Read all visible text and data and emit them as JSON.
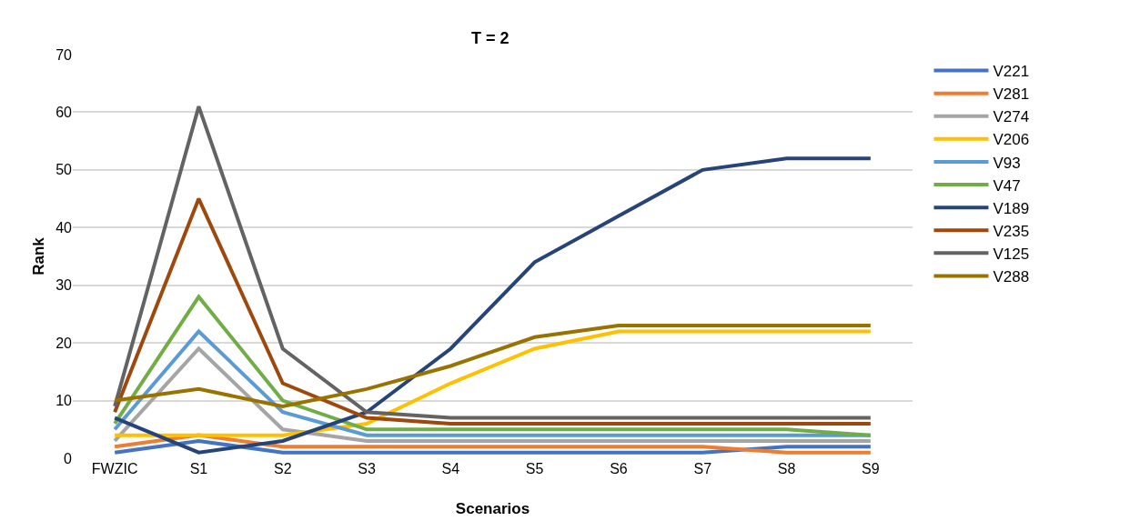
{
  "chart_data": {
    "type": "line",
    "title": "T = 2",
    "xlabel": "Scenarios",
    "ylabel": "Rank",
    "categories": [
      "FWZIC",
      "S1",
      "S2",
      "S3",
      "S4",
      "S5",
      "S6",
      "S7",
      "S8",
      "S9"
    ],
    "ylim": [
      0,
      70
    ],
    "yticks": [
      0,
      10,
      20,
      30,
      40,
      50,
      60,
      70
    ],
    "grid": "y",
    "legend": "right",
    "marker": "none",
    "line_style": "solid",
    "series": [
      {
        "name": "V221",
        "color": "#4472c4",
        "values": [
          1,
          3,
          1,
          1,
          1,
          1,
          1,
          1,
          2,
          2
        ]
      },
      {
        "name": "V281",
        "color": "#ed7d31",
        "values": [
          2,
          4,
          2,
          2,
          2,
          2,
          2,
          2,
          1,
          1
        ]
      },
      {
        "name": "V274",
        "color": "#a5a5a5",
        "values": [
          3,
          19,
          5,
          3,
          3,
          3,
          3,
          3,
          3,
          3
        ]
      },
      {
        "name": "V206",
        "color": "#ffc000",
        "values": [
          4,
          4,
          4,
          6,
          13,
          19,
          22,
          22,
          22,
          22
        ]
      },
      {
        "name": "V93",
        "color": "#5b9bd5",
        "values": [
          5,
          22,
          8,
          4,
          4,
          4,
          4,
          4,
          4,
          4
        ]
      },
      {
        "name": "V47",
        "color": "#70ad47",
        "values": [
          6,
          28,
          10,
          5,
          5,
          5,
          5,
          5,
          5,
          4
        ]
      },
      {
        "name": "V189",
        "color": "#264478",
        "values": [
          7,
          1,
          3,
          8,
          19,
          34,
          42,
          50,
          52,
          52
        ]
      },
      {
        "name": "V235",
        "color": "#9e480e",
        "values": [
          8,
          45,
          13,
          7,
          6,
          6,
          6,
          6,
          6,
          6
        ]
      },
      {
        "name": "V125",
        "color": "#636363",
        "values": [
          9,
          61,
          19,
          8,
          7,
          7,
          7,
          7,
          7,
          7
        ]
      },
      {
        "name": "V288",
        "color": "#997300",
        "values": [
          10,
          12,
          9,
          12,
          16,
          21,
          23,
          23,
          23,
          23
        ]
      }
    ]
  }
}
